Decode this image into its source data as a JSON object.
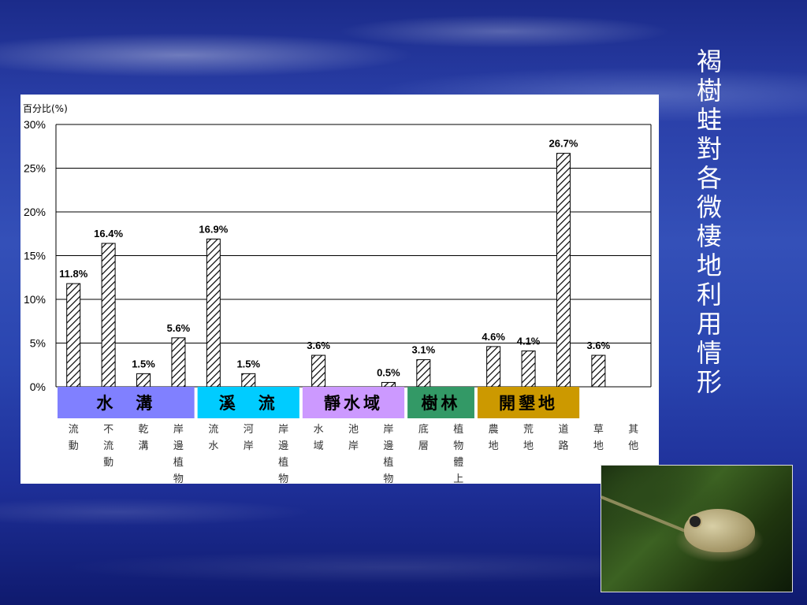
{
  "title": "褐樹蛙對各微棲地利用情形",
  "chart_data": {
    "type": "bar",
    "ylabel": "百分比(%)",
    "ylim": [
      0,
      30
    ],
    "yticks": [
      "0%",
      "5%",
      "10%",
      "15%",
      "20%",
      "25%",
      "30%"
    ],
    "grid": true,
    "categories": [
      "流動",
      "不流動",
      "乾溝",
      "岸邊植物",
      "流水",
      "河岸",
      "岸邊植物",
      "水域",
      "池岸",
      "岸邊植物",
      "底層",
      "植物體上",
      "農地",
      "荒地",
      "道路",
      "草地",
      "其他"
    ],
    "values": [
      11.8,
      16.4,
      1.5,
      5.6,
      16.9,
      1.5,
      null,
      3.6,
      null,
      0.5,
      3.1,
      null,
      4.6,
      4.1,
      26.7,
      3.6,
      null
    ],
    "data_labels": [
      "11.8%",
      "16.4%",
      "1.5%",
      "5.6%",
      "16.9%",
      "1.5%",
      "",
      "3.6%",
      "",
      "0.5%",
      "3.1%",
      "",
      "4.6%",
      "4.1%",
      "26.7%",
      "3.6%",
      ""
    ],
    "groups": [
      {
        "label": "水　溝",
        "color": "#8080ff",
        "start": 0,
        "end": 3
      },
      {
        "label": "溪　流",
        "color": "#00ccff",
        "start": 4,
        "end": 6
      },
      {
        "label": "靜水域",
        "color": "#cc99ff",
        "start": 7,
        "end": 9
      },
      {
        "label": "樹林",
        "color": "#339966",
        "start": 10,
        "end": 11
      },
      {
        "label": "開墾地",
        "color": "#cc9900",
        "start": 12,
        "end": 14
      }
    ]
  }
}
